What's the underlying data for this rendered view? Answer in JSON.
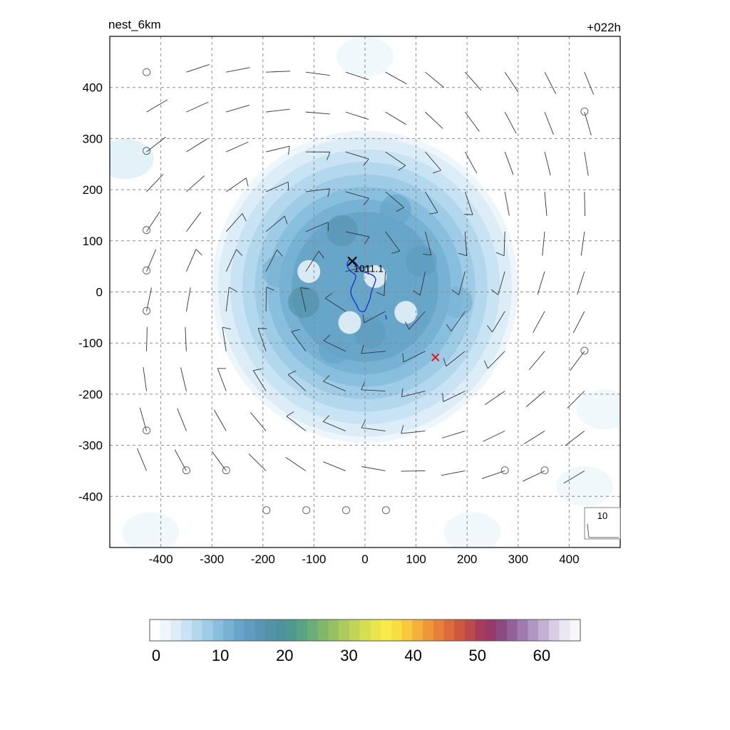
{
  "chart_data": {
    "type": "heatmap",
    "title_left": "nest_6km",
    "title_right": "+022h",
    "xlim": [
      -500,
      500
    ],
    "ylim": [
      -500,
      500
    ],
    "x_ticks": [
      -400,
      -300,
      -200,
      -100,
      0,
      100,
      200,
      300,
      400
    ],
    "y_ticks": [
      400,
      300,
      200,
      100,
      0,
      -100,
      -200,
      -300,
      -400
    ],
    "grid": true,
    "colorbar": {
      "ticks": [
        0,
        10,
        20,
        30,
        40,
        50,
        60
      ],
      "min": -1,
      "max": 66,
      "colors": [
        "#ffffff",
        "#eef6fb",
        "#dcedf7",
        "#c8e3f3",
        "#b3d8ee",
        "#9ecbe6",
        "#89bfde",
        "#77b2d4",
        "#67a5c9",
        "#5f9cbf",
        "#5a96b4",
        "#5393a8",
        "#4d929e",
        "#4f9a90",
        "#5aa383",
        "#6aad76",
        "#7fb76b",
        "#95c163",
        "#abcb5d",
        "#c1d457",
        "#d6de51",
        "#e8e64c",
        "#f6eb47",
        "#f9de42",
        "#f8c93d",
        "#f4b03a",
        "#ee9739",
        "#e67f38",
        "#dc6a3a",
        "#ce5740",
        "#bd4a4a",
        "#a83c5b",
        "#963a6e",
        "#8b4a82",
        "#92619a",
        "#a07bb0",
        "#b096c3",
        "#c3b1d4",
        "#d8cde4",
        "#ece6f2",
        "#f8f6fb"
      ]
    },
    "center_marker": {
      "x": -25,
      "y": 60,
      "label": "1011.1",
      "color": "#000000"
    },
    "red_marker": {
      "x": 138,
      "y": -128,
      "color": "#e8141b"
    },
    "contour_color": "#1030d0",
    "wind_reference_label": "10",
    "calm_points": [
      [
        -428,
        430
      ],
      [
        430,
        353
      ],
      [
        -428,
        276
      ],
      [
        -428,
        121
      ],
      [
        -428,
        42
      ],
      [
        -428,
        -37
      ],
      [
        430,
        -115
      ],
      [
        -428,
        -271
      ],
      [
        -350,
        -349
      ],
      [
        -272,
        -349
      ],
      [
        274,
        -349
      ],
      [
        352,
        -349
      ],
      [
        -193,
        -427
      ],
      [
        -115,
        -427
      ],
      [
        -37,
        -427
      ],
      [
        41,
        -427
      ]
    ]
  }
}
